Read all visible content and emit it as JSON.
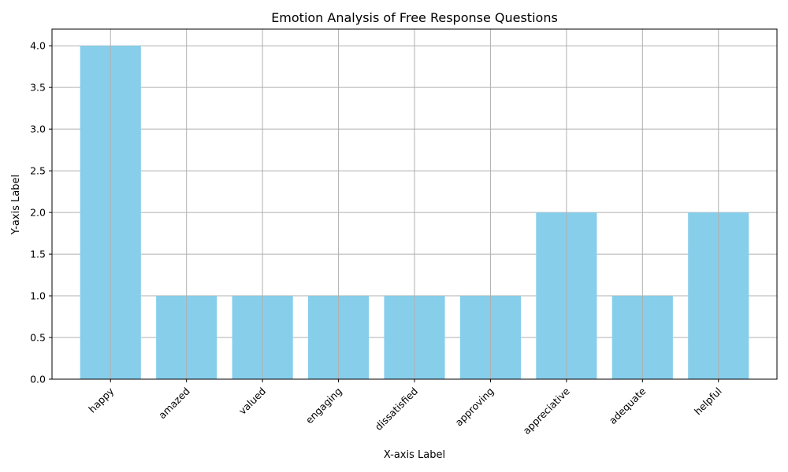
{
  "chart_data": {
    "type": "bar",
    "title": "Emotion Analysis of Free Response Questions",
    "xlabel": "X-axis Label",
    "ylabel": "Y-axis Label",
    "categories": [
      "happy",
      "amazed",
      "valued",
      "engaging",
      "dissatisfied",
      "approving",
      "appreciative",
      "adequate",
      "helpful"
    ],
    "values": [
      4,
      1,
      1,
      1,
      1,
      1,
      2,
      1,
      2
    ],
    "ylim": [
      0,
      4.2
    ],
    "yticks": [
      0.0,
      0.5,
      1.0,
      1.5,
      2.0,
      2.5,
      3.0,
      3.5,
      4.0
    ],
    "ytick_labels": [
      "0.0",
      "0.5",
      "1.0",
      "1.5",
      "2.0",
      "2.5",
      "3.0",
      "3.5",
      "4.0"
    ],
    "grid": true,
    "bar_color": "#87CEEB",
    "grid_color": "#b0b0b0",
    "x_tick_rotation": 45
  }
}
